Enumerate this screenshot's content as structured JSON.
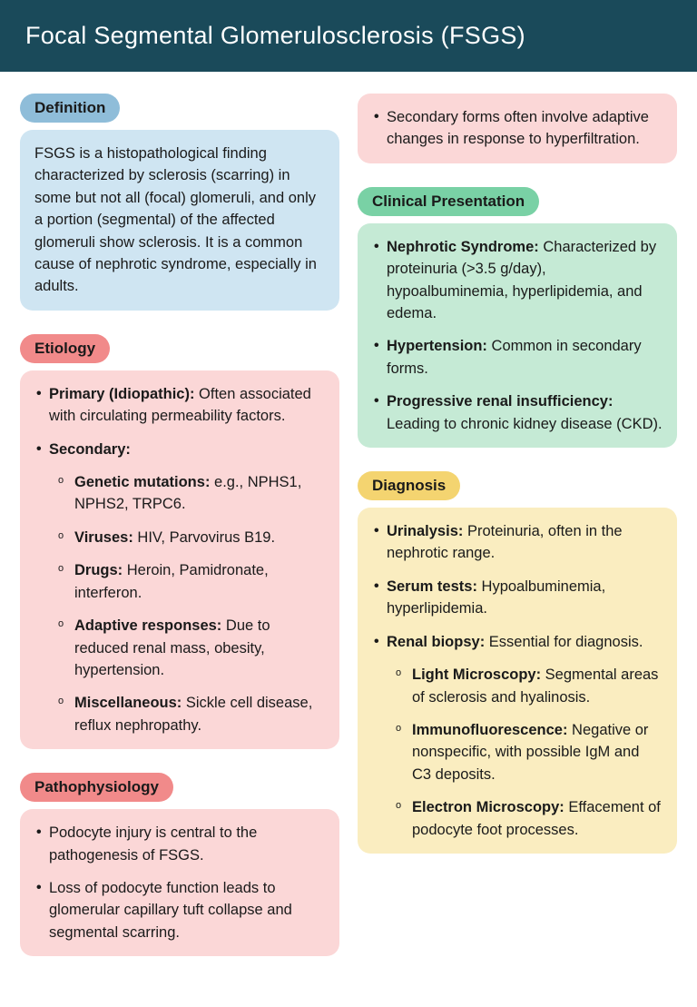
{
  "title": "Focal Segmental Glomerulosclerosis (FSGS)",
  "colors": {
    "header_bg": "#1a4a5a",
    "header_text": "#ffffff",
    "blue_tag": "#8fbdd9",
    "blue_body": "#cfe5f2",
    "red_tag": "#f18a8a",
    "red_body": "#fbd7d7",
    "green_tag": "#79d1a5",
    "green_body": "#c5ead5",
    "yellow_tag": "#f4d470",
    "yellow_body": "#faedc0",
    "text": "#1a1a1a"
  },
  "definition": {
    "label": "Definition",
    "text": "FSGS is a histopathological finding characterized by sclerosis (scarring) in some but not all (focal) glomeruli, and only a portion (segmental) of the affected glomeruli show sclerosis. It is a common cause of nephrotic syndrome, especially in adults."
  },
  "etiology": {
    "label": "Etiology",
    "primary_b": "Primary (Idiopathic):",
    "primary_t": " Often associated with circulating permeability factors.",
    "secondary_b": "Secondary:",
    "sub": {
      "genetic_b": "Genetic mutations:",
      "genetic_t": " e.g., NPHS1, NPHS2, TRPC6.",
      "viruses_b": "Viruses:",
      "viruses_t": " HIV, Parvovirus B19.",
      "drugs_b": "Drugs:",
      "drugs_t": " Heroin, Pamidronate, interferon.",
      "adaptive_b": "Adaptive responses:",
      "adaptive_t": " Due to reduced renal mass, obesity, hypertension.",
      "misc_b": "Miscellaneous:",
      "misc_t": " Sickle cell disease, reflux nephropathy."
    }
  },
  "patho": {
    "label": "Pathophysiology",
    "p1": "Podocyte injury is central to the pathogenesis of FSGS.",
    "p2": "Loss of podocyte function leads to glomerular capillary tuft collapse and segmental scarring.",
    "p3": "Secondary forms often involve adaptive changes in response to hyperfiltration."
  },
  "clinical": {
    "label": "Clinical Presentation",
    "nephrotic_b": "Nephrotic Syndrome:",
    "nephrotic_t": " Characterized by proteinuria (>3.5 g/day), hypoalbuminemia, hyperlipidemia, and edema.",
    "htn_b": "Hypertension:",
    "htn_t": " Common in secondary forms.",
    "renal_b": "Progressive renal insufficiency:",
    "renal_t": " Leading to chronic kidney disease (CKD)."
  },
  "diagnosis": {
    "label": "Diagnosis",
    "urin_b": "Urinalysis:",
    "urin_t": " Proteinuria, often in the nephrotic range.",
    "serum_b": "Serum tests:",
    "serum_t": " Hypoalbuminemia, hyperlipidemia.",
    "biopsy_b": "Renal biopsy:",
    "biopsy_t": " Essential for diagnosis.",
    "sub": {
      "light_b": "Light Microscopy:",
      "light_t": " Segmental areas of sclerosis and hyalinosis.",
      "immuno_b": "Immunofluorescence:",
      "immuno_t": " Negative or nonspecific, with possible IgM and C3 deposits.",
      "em_b": "Electron Microscopy:",
      "em_t": " Effacement of podocyte foot processes."
    }
  }
}
